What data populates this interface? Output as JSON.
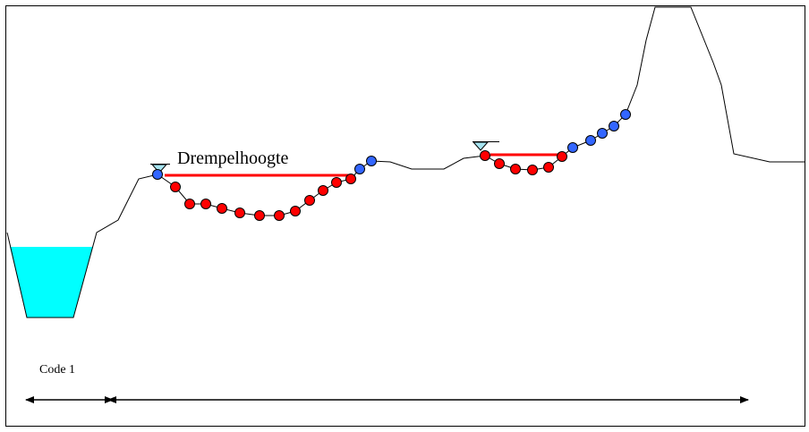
{
  "labels": {
    "threshold": "Drempelhoogte",
    "code": "Code 1"
  },
  "colors": {
    "profile": "#000000",
    "water": "#00ffff",
    "water_marker": "#a6e4f0",
    "threshold_line": "#ff0000",
    "low_point": "#ff0000",
    "high_point": "#3366ff",
    "point_outline": "#000000",
    "frame": "#000000"
  }
}
